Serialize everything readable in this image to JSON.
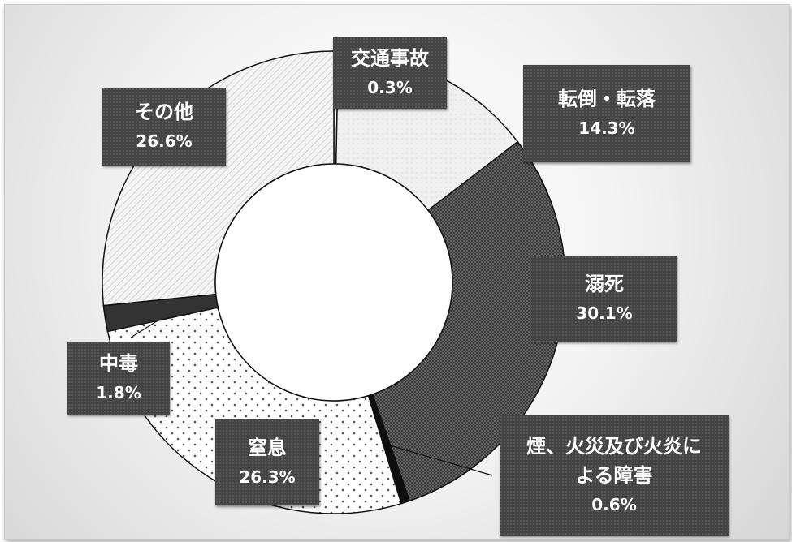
{
  "colors": {
    "label_bg": "#444444",
    "label_text": "#ffffff",
    "slice_fills": [
      "#ffffff",
      "#f0f0f0",
      "#606060",
      "#0f0f0f",
      "#ffffff",
      "#333333",
      "#f2f2f2"
    ]
  },
  "chart_data": {
    "type": "pie",
    "style": "donut",
    "title": "",
    "categories": [
      "交通事故",
      "転倒・転落",
      "溺死",
      "煙、火災及び火炎による障害",
      "窒息",
      "中毒",
      "その他"
    ],
    "values": [
      0.3,
      14.3,
      30.1,
      0.6,
      26.3,
      1.8,
      26.6
    ],
    "value_labels": [
      "0.3%",
      "14.3%",
      "30.1%",
      "0.6%",
      "26.3%",
      "1.8%",
      "26.6%"
    ],
    "label_lines": {
      "煙、火災及び火炎による障害": [
        "煙、火災及び火炎に",
        "よる障害"
      ]
    },
    "start_angle_deg": 0,
    "direction": "clockwise",
    "legend": "none",
    "data_labels": "outside callouts"
  }
}
